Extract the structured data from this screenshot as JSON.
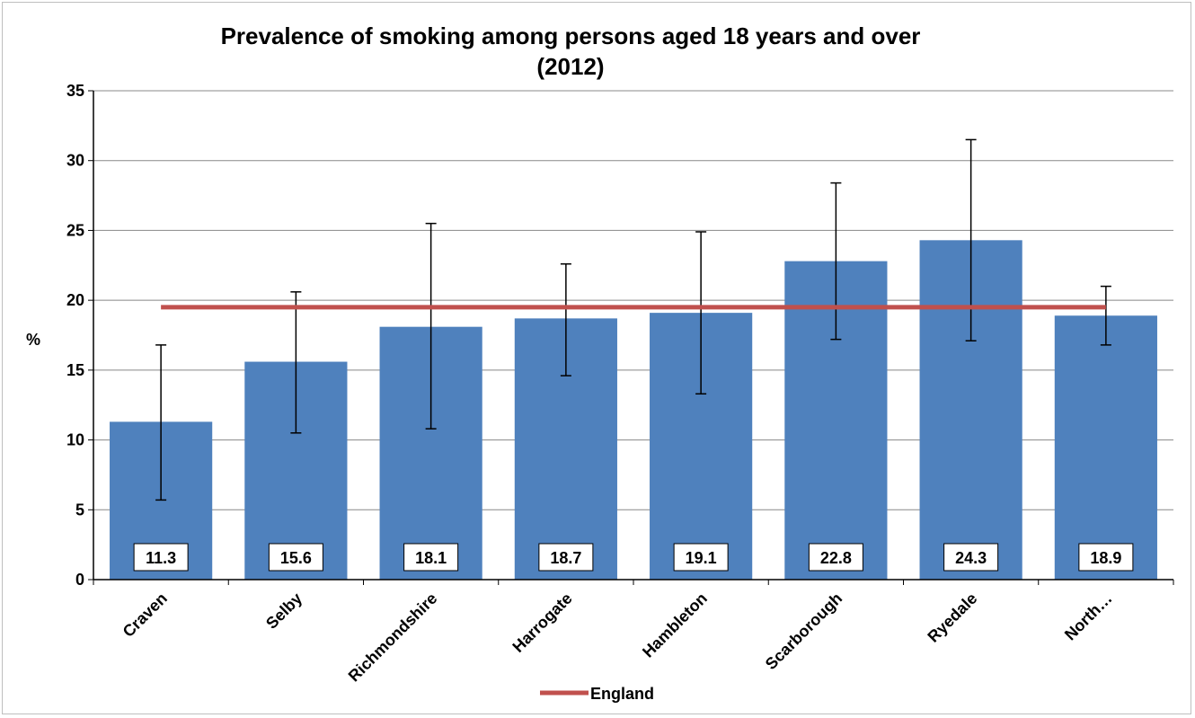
{
  "chart_data": {
    "type": "bar",
    "title_line1": "Prevalence of smoking among persons aged 18 years and over",
    "title_line2": "(2012)",
    "xlabel": "",
    "ylabel": "%",
    "ylim": [
      0,
      35
    ],
    "yticks": [
      0,
      5,
      10,
      15,
      20,
      25,
      30,
      35
    ],
    "grid": true,
    "categories": [
      "Craven",
      "Selby",
      "Richmondshire",
      "Harrogate",
      "Hambleton",
      "Scarborough",
      "Ryedale",
      "North…"
    ],
    "values": [
      11.3,
      15.6,
      18.1,
      18.7,
      19.1,
      22.8,
      24.3,
      18.9
    ],
    "data_labels": [
      "11.3",
      "15.6",
      "18.1",
      "18.7",
      "19.1",
      "22.8",
      "24.3",
      "18.9"
    ],
    "error_lower": [
      5.7,
      10.5,
      10.8,
      14.6,
      13.3,
      17.2,
      17.1,
      16.8
    ],
    "error_upper": [
      16.8,
      20.6,
      25.5,
      22.6,
      24.9,
      28.4,
      31.5,
      21.0
    ],
    "reference_line": {
      "name": "England",
      "value": 19.5,
      "color": "#c0504d"
    },
    "legend": {
      "position": "bottom",
      "entries": [
        "England"
      ]
    },
    "bar_color": "#4f81bd",
    "grid_color": "#888888"
  }
}
